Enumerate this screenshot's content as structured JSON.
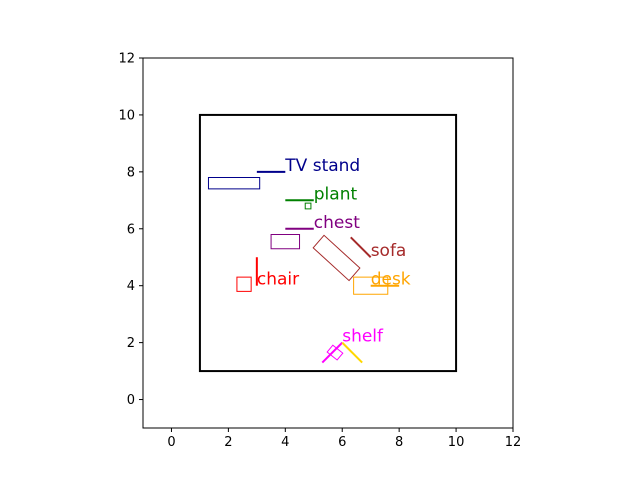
{
  "chart_data": {
    "type": "scatter",
    "title": "",
    "xlabel": "",
    "ylabel": "",
    "xlim": [
      -1,
      12
    ],
    "ylim": [
      -1,
      12
    ],
    "xticks": [
      0,
      2,
      4,
      6,
      8,
      10,
      12
    ],
    "yticks": [
      0,
      2,
      4,
      6,
      8,
      10,
      12
    ],
    "grid": false,
    "room": {
      "x": [
        1,
        10
      ],
      "y": [
        1,
        10
      ],
      "color": "#000000"
    },
    "items": [
      {
        "name": "TV stand",
        "color": "#00008b",
        "box": [
          [
            1.3,
            7.4
          ],
          [
            3.1,
            7.4
          ],
          [
            3.1,
            7.8
          ],
          [
            1.3,
            7.8
          ]
        ],
        "leader": [
          [
            3.0,
            8.0
          ],
          [
            4.0,
            8.0
          ]
        ],
        "label_at": [
          4.0,
          8.0
        ]
      },
      {
        "name": "plant",
        "color": "#008000",
        "box": [
          [
            4.7,
            6.7
          ],
          [
            4.9,
            6.7
          ],
          [
            4.9,
            6.9
          ],
          [
            4.7,
            6.9
          ]
        ],
        "leader": [
          [
            4.0,
            7.0
          ],
          [
            5.0,
            7.0
          ]
        ],
        "label_at": [
          5.0,
          7.0
        ]
      },
      {
        "name": "chest",
        "color": "#800080",
        "box": [
          [
            3.5,
            5.3
          ],
          [
            4.5,
            5.3
          ],
          [
            4.5,
            5.8
          ],
          [
            3.5,
            5.8
          ]
        ],
        "leader": [
          [
            4.0,
            6.0
          ],
          [
            5.0,
            6.0
          ]
        ],
        "label_at": [
          5.0,
          6.0
        ]
      },
      {
        "name": "sofa",
        "color": "#a52a2a",
        "box": [
          [
            4.98,
            5.33
          ],
          [
            5.36,
            5.77
          ],
          [
            6.62,
            4.62
          ],
          [
            6.24,
            4.18
          ]
        ],
        "leader": [
          [
            6.3,
            5.7
          ],
          [
            7.0,
            5.0
          ]
        ],
        "label_at": [
          7.0,
          5.0
        ]
      },
      {
        "name": "chair",
        "color": "#ff0000",
        "box": [
          [
            2.3,
            3.8
          ],
          [
            2.8,
            3.8
          ],
          [
            2.8,
            4.3
          ],
          [
            2.3,
            4.3
          ]
        ],
        "leader": [
          [
            3.0,
            5.0
          ],
          [
            3.0,
            4.0
          ]
        ],
        "label_at": [
          3.0,
          4.0
        ]
      },
      {
        "name": "desk",
        "color": "#ffa500",
        "box": [
          [
            6.4,
            3.7
          ],
          [
            7.6,
            3.7
          ],
          [
            7.6,
            4.3
          ],
          [
            6.4,
            4.3
          ]
        ],
        "leader": [
          [
            7.0,
            4.0
          ],
          [
            8.0,
            4.0
          ]
        ],
        "label_at": [
          7.0,
          4.0
        ]
      },
      {
        "name": "shelf",
        "color": "#ff00ff",
        "box": [
          [
            5.82,
            1.39
          ],
          [
            6.02,
            1.63
          ],
          [
            5.67,
            1.91
          ],
          [
            5.47,
            1.67
          ]
        ],
        "leader": [
          [
            5.3,
            1.3
          ],
          [
            6.0,
            2.0
          ]
        ],
        "label_at": [
          6.0,
          2.0
        ]
      },
      {
        "name": "",
        "color": "#ffd700",
        "box": [],
        "leader": [
          [
            6.0,
            2.0
          ],
          [
            6.7,
            1.3
          ]
        ],
        "label_at": [
          6.0,
          2.0
        ]
      }
    ]
  }
}
